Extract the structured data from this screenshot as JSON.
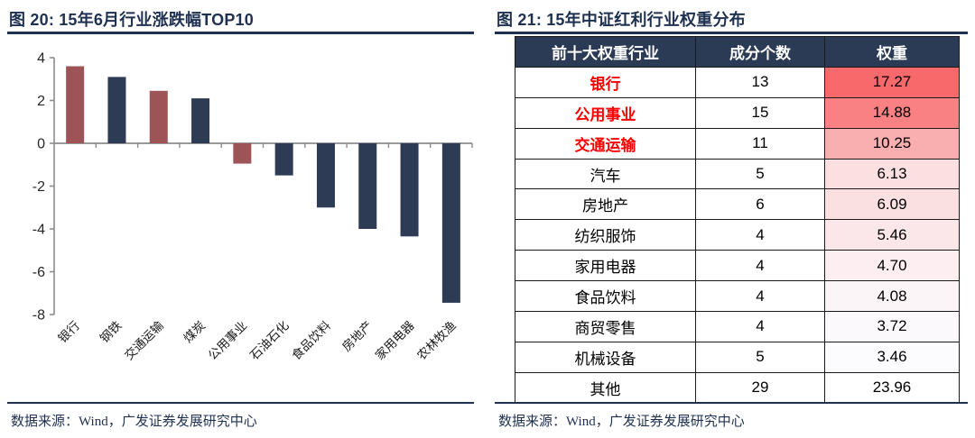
{
  "left_panel": {
    "title": "图 20:  15年6月行业涨跌幅TOP10",
    "source": "数据来源：Wind，广发证券发展研究中心"
  },
  "right_panel": {
    "title": "图 21:  15年中证红利行业权重分布",
    "source": "数据来源：Wind，广发证券发展研究中心"
  },
  "colors": {
    "title_navy": "#1F3150",
    "bar_navy": "#2D3B54",
    "bar_red": "#9C5457",
    "axis_gray": "#8C8C8C",
    "tick_label": "#262626",
    "table_header_bg": "#2B3A55",
    "table_border": "#1A1A1A",
    "highlight_red": "#FF0000"
  },
  "chart_data": {
    "type": "bar",
    "title": "15年6月行业涨跌幅TOP10",
    "xlabel": "",
    "ylabel": "",
    "ylim": [
      -8,
      4
    ],
    "yticks": [
      4,
      2,
      0,
      -2,
      -4,
      -6,
      -8
    ],
    "grid": false,
    "legend": "none",
    "categories": [
      "银行",
      "钢铁",
      "交通运输",
      "煤炭",
      "公用事业",
      "石油石化",
      "食品饮料",
      "房地产",
      "家用电器",
      "农林牧渔"
    ],
    "values": [
      3.6,
      3.1,
      2.45,
      2.1,
      -0.95,
      -1.5,
      -3.0,
      -4.0,
      -4.35,
      -7.45
    ],
    "bar_highlight": [
      true,
      false,
      true,
      false,
      true,
      false,
      false,
      false,
      false,
      false
    ]
  },
  "table": {
    "headers": [
      "前十大权重行业",
      "成分个数",
      "权重"
    ],
    "rows": [
      {
        "industry": "银行",
        "count": "13",
        "weight": "17.27",
        "highlight": true,
        "weight_bg": "#F8696B"
      },
      {
        "industry": "公用事业",
        "count": "15",
        "weight": "14.88",
        "highlight": true,
        "weight_bg": "#F98184"
      },
      {
        "industry": "交通运输",
        "count": "11",
        "weight": "10.25",
        "highlight": true,
        "weight_bg": "#F9AEB0"
      },
      {
        "industry": "汽车",
        "count": "5",
        "weight": "6.13",
        "highlight": false,
        "weight_bg": "#FBDFE1"
      },
      {
        "industry": "房地产",
        "count": "6",
        "weight": "6.09",
        "highlight": false,
        "weight_bg": "#FBE0E2"
      },
      {
        "industry": "纺织服饰",
        "count": "4",
        "weight": "5.46",
        "highlight": false,
        "weight_bg": "#FBE7E9"
      },
      {
        "industry": "家用电器",
        "count": "4",
        "weight": "4.70",
        "highlight": false,
        "weight_bg": "#FCEEF1"
      },
      {
        "industry": "食品饮料",
        "count": "4",
        "weight": "4.08",
        "highlight": false,
        "weight_bg": "#FCF5F7"
      },
      {
        "industry": "商贸零售",
        "count": "4",
        "weight": "3.72",
        "highlight": false,
        "weight_bg": "#FCF9FC"
      },
      {
        "industry": "机械设备",
        "count": "5",
        "weight": "3.46",
        "highlight": false,
        "weight_bg": "#FCFCFF"
      },
      {
        "industry": "其他",
        "count": "29",
        "weight": "23.96",
        "highlight": false,
        "weight_bg": "#FFFFFF"
      }
    ]
  }
}
